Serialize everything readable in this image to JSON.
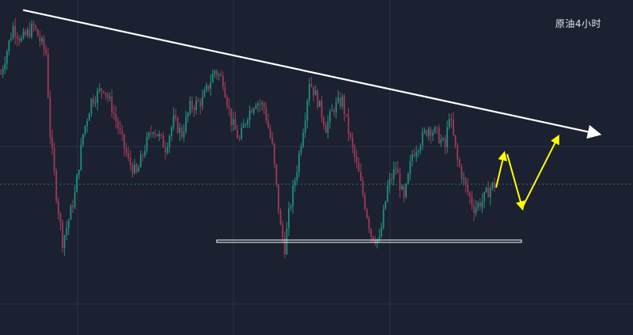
{
  "chart_data": {
    "type": "candlestick",
    "title": "原油4小时",
    "grid": true,
    "up_color": "#1f8f80",
    "down_color": "#a03a56",
    "trendline_color": "#ffffff",
    "projection_color": "#ffff00",
    "support_color": "#ffffff",
    "price_line_color": "#2f6e66",
    "ylim": [
      0,
      100
    ],
    "candles": [],
    "trendline": {
      "from_index": 7,
      "start_value": 97,
      "end_value": 60
    },
    "support": {
      "value": 28,
      "from_index": 105,
      "to_index": 230
    },
    "projection": [
      54,
      46,
      38,
      66,
      44,
      39,
      62
    ],
    "current_price_level": 45
  }
}
